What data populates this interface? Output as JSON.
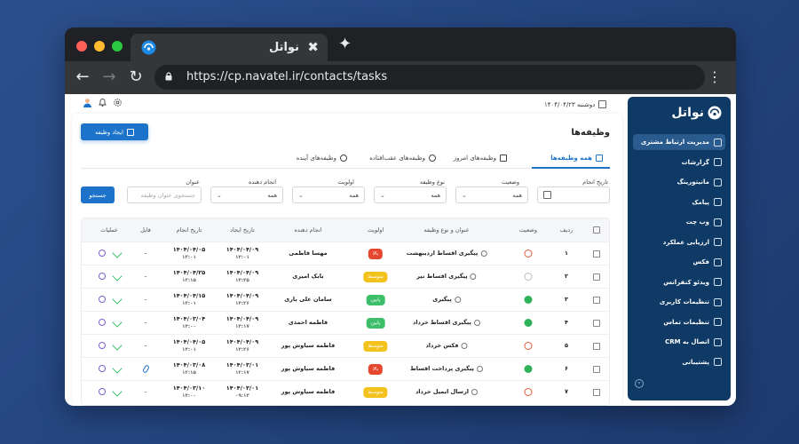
{
  "browser": {
    "tab_title": "نواتل",
    "close_glyph": "✖",
    "newtab_glyph": "✦",
    "url": "https://cp.navatel.ir/contacts/tasks",
    "back_glyph": "←",
    "forward_glyph": "→",
    "reload_glyph": "↻",
    "menu_glyph": "⋮"
  },
  "topbar": {
    "date": "دوشنبه ۱۴۰۴/۰۴/۲۳"
  },
  "sidebar": {
    "logo": "نواتل",
    "items": [
      {
        "label": "مدیریت ارتباط مشتری",
        "icon": "contacts-icon",
        "active": true
      },
      {
        "label": "گزارشات",
        "icon": "report-icon"
      },
      {
        "label": "مانیتورینگ",
        "icon": "monitor-icon"
      },
      {
        "label": "پیامک",
        "icon": "sms-icon"
      },
      {
        "label": "وب چت",
        "icon": "webchat-icon"
      },
      {
        "label": "ارزیابی عملکرد",
        "icon": "evaluation-icon"
      },
      {
        "label": "فکس",
        "icon": "fax-icon"
      },
      {
        "label": "ویدئو کنفرانس",
        "icon": "video-icon"
      },
      {
        "label": "تنظیمات کاربری",
        "icon": "user-settings-icon"
      },
      {
        "label": "تنظیمات تماس",
        "icon": "call-settings-icon"
      },
      {
        "label": "اتصال به CRM",
        "icon": "crm-icon"
      },
      {
        "label": "پشتیبانی",
        "icon": "support-icon"
      }
    ]
  },
  "main": {
    "title": "وظیفه‌ها",
    "create_button": "ایجاد وظیفه",
    "tabs": [
      {
        "label": "همه وظیفه‌ها",
        "active": true
      },
      {
        "label": "وظیفه‌های امروز"
      },
      {
        "label": "وظیفه‌های عقب‌افتاده"
      },
      {
        "label": "وظیفه‌های آینده"
      }
    ],
    "filters": {
      "due_date_label": "تاریخ انجام",
      "status_label": "وضعیت",
      "status_value": "همه",
      "type_label": "نوع وظیفه",
      "type_value": "همه",
      "priority_label": "اولویت",
      "priority_value": "همه",
      "assignee_label": "انجام دهنده",
      "assignee_value": "همه",
      "title_label": "عنوان",
      "title_placeholder": "جستجوی عنوان وظیفه",
      "search_button": "جستجو"
    },
    "table": {
      "headers": {
        "row": "ردیف",
        "status": "وضعیت",
        "title": "عنوان و نوع وظیفه",
        "priority": "اولویت",
        "assignee": "انجام دهنده",
        "created": "تاریخ ایجاد",
        "due": "تاریخ انجام",
        "file": "فایل",
        "actions": "عملیات"
      },
      "rows": [
        {
          "num": "۱",
          "status": "fail",
          "title": "پیگیری اقساط اردیبهشت",
          "type": "sms",
          "priority": "بالا",
          "priority_level": "high",
          "assignee": "مهسا فاطمی",
          "created_date": "۱۴۰۴/۰۴/۰۹",
          "created_time": "۱۴:۰۱",
          "due_date": "۱۴۰۴/۰۴/۰۵",
          "due_time": "۱۳:۰۱",
          "file": "–"
        },
        {
          "num": "۲",
          "status": "pending",
          "title": "پیگیری اقساط تیر",
          "type": "call",
          "priority": "متوسط",
          "priority_level": "mid",
          "assignee": "بابک امیری",
          "created_date": "۱۴۰۴/۰۴/۰۹",
          "created_time": "۱۴:۴۵",
          "due_date": "۱۴۰۴/۰۴/۲۵",
          "due_time": "۱۳:۱۵",
          "file": "–"
        },
        {
          "num": "۳",
          "status": "ok",
          "title": "پیگیری",
          "type": "call",
          "priority": "پایین",
          "priority_level": "low",
          "assignee": "سامان علی یاری",
          "created_date": "۱۴۰۴/۰۴/۰۹",
          "created_time": "۱۴:۲۶",
          "due_date": "۱۴۰۴/۰۴/۱۵",
          "due_time": "۱۳:۰۱",
          "file": "–"
        },
        {
          "num": "۴",
          "status": "ok",
          "title": "پیگیری اقساط خرداد",
          "type": "sms",
          "priority": "پایین",
          "priority_level": "low",
          "assignee": "فاطمه احمدی",
          "created_date": "۱۴۰۴/۰۴/۰۹",
          "created_time": "۱۴:۱۷",
          "due_date": "۱۴۰۴/۰۳/۰۴",
          "due_time": "۱۴:۰۰",
          "file": "–"
        },
        {
          "num": "۵",
          "status": "fail",
          "title": "فکس خرداد",
          "type": "fax",
          "priority": "متوسط",
          "priority_level": "mid",
          "assignee": "فاطمه سیاوش پور",
          "created_date": "۱۴۰۴/۰۴/۰۹",
          "created_time": "۱۴:۲۶",
          "due_date": "۱۴۰۴/۰۴/۰۵",
          "due_time": "۱۴:۰۱",
          "file": "–"
        },
        {
          "num": "۶",
          "status": "ok",
          "title": "پیگیری پرداخت اقساط",
          "type": "call",
          "priority": "بالا",
          "priority_level": "high",
          "assignee": "فاطمه سیاوش پور",
          "created_date": "۱۴۰۴/۰۳/۰۱",
          "created_time": "۱۲:۱۷",
          "due_date": "۱۴۰۴/۰۳/۰۸",
          "due_time": "۱۲:۱۵",
          "file": "attachment"
        },
        {
          "num": "۷",
          "status": "fail",
          "title": "ارسال ایمیل خرداد",
          "type": "email",
          "priority": "متوسط",
          "priority_level": "mid",
          "assignee": "فاطمه سیاوش پور",
          "created_date": "۱۴۰۴/۰۳/۰۱",
          "created_time": "۰۹:۱۳",
          "due_date": "۱۴۰۴/۰۳/۱۰",
          "due_time": "۱۴:۰۰",
          "file": "–"
        }
      ]
    }
  },
  "colors": {
    "accent": "#1d73c9",
    "sidebar": "#0f3a66",
    "priority_high": "#e5482f",
    "priority_mid": "#f4c21c",
    "priority_low": "#3cbf6b"
  }
}
